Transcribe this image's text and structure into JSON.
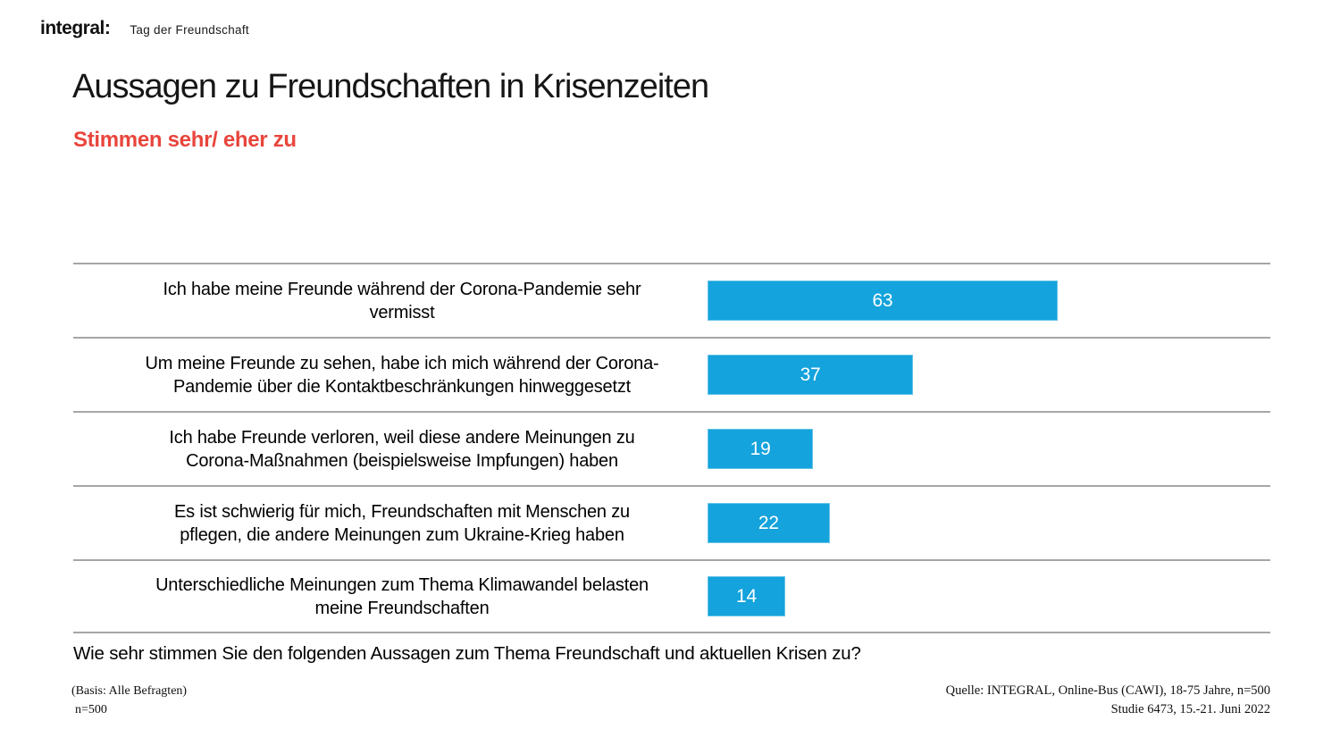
{
  "header": {
    "logo": "integral:",
    "event": "Tag der Freundschaft"
  },
  "title": "Aussagen zu Freundschaften in Krisenzeiten",
  "subtitle": "Stimmen sehr/ eher zu",
  "colors": {
    "bar_blue": "#14A3DC",
    "accent_red": "#E8453C",
    "divider_gray": "#A6A6A6"
  },
  "chart_data": {
    "type": "bar",
    "orientation": "horizontal",
    "unit": "percent agreement",
    "title": "Aussagen zu Freundschaften in Krisenzeiten",
    "subtitle": "Stimmen sehr/ eher zu",
    "categories": [
      "Ich habe meine Freunde während der Corona-Pandemie sehr\nvermisst",
      "Um meine Freunde zu sehen, habe ich mich während der Corona-\nPandemie über die Kontaktbeschränkungen hinweggesetzt",
      "Ich habe Freunde verloren, weil diese andere Meinungen zu\nCorona-Maßnahmen (beispielsweise Impfungen) haben",
      "Es ist schwierig für mich, Freundschaften mit Menschen zu\npflegen, die andere Meinungen zum Ukraine-Krieg haben",
      "Unterschiedliche Meinungen zum Thema Klimawandel belasten\nmeine Freundschaften"
    ],
    "values": [
      63,
      37,
      19,
      22,
      14
    ],
    "xlim": [
      0,
      100
    ],
    "value_label_position": "inside-center",
    "legend": "none",
    "grid": "horizontal row dividers only"
  },
  "question": "Wie sehr stimmen Sie den folgenden Aussagen zum Thema Freundschaft und aktuellen Krisen zu?",
  "footer": {
    "basis_line1": "(Basis: Alle Befragten)",
    "basis_line2": "n=500",
    "source_line1": "Quelle: INTEGRAL, Online-Bus (CAWI), 18-75 Jahre, n=500",
    "source_line2": "Studie 6473, 15.-21. Juni 2022"
  }
}
